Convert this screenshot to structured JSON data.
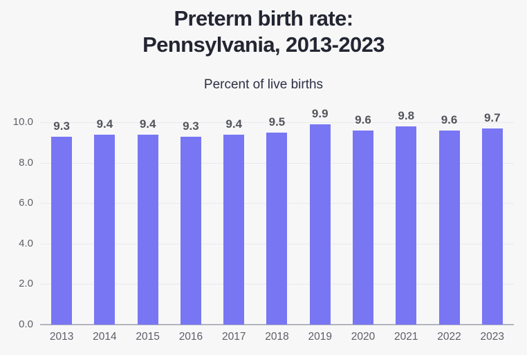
{
  "header": {
    "title_lines": [
      "Preterm birth rate:",
      "Pennsylvania, 2013-2023"
    ],
    "subtitle": "Percent of live births"
  },
  "chart_data": {
    "type": "bar",
    "title": "Preterm birth rate: Pennsylvania, 2013-2023",
    "subtitle": "Percent of live births",
    "categories": [
      "2013",
      "2014",
      "2015",
      "2016",
      "2017",
      "2018",
      "2019",
      "2020",
      "2021",
      "2022",
      "2023"
    ],
    "values": [
      9.3,
      9.4,
      9.4,
      9.3,
      9.4,
      9.5,
      9.9,
      9.6,
      9.8,
      9.6,
      9.7
    ],
    "data_labels": [
      "9.3",
      "9.4",
      "9.4",
      "9.3",
      "9.4",
      "9.5",
      "9.9",
      "9.6",
      "9.8",
      "9.6",
      "9.7"
    ],
    "xlabel": "",
    "ylabel": "",
    "ylim": [
      0,
      10
    ],
    "yticks": [
      10.0,
      8.0,
      6.0,
      4.0,
      2.0,
      0.0
    ],
    "ytick_labels": [
      "10.0",
      "8.0",
      "6.0",
      "4.0",
      "2.0",
      "0.0"
    ],
    "grid": true,
    "legend": false,
    "colors": {
      "bar": "#7876f3",
      "gridline": "#e9e9ee",
      "baseline": "#b3b4bd",
      "data_label": "#53545a",
      "axis_label": "#5d5e66",
      "title": "#232632",
      "background": "#f7f7f8"
    }
  }
}
